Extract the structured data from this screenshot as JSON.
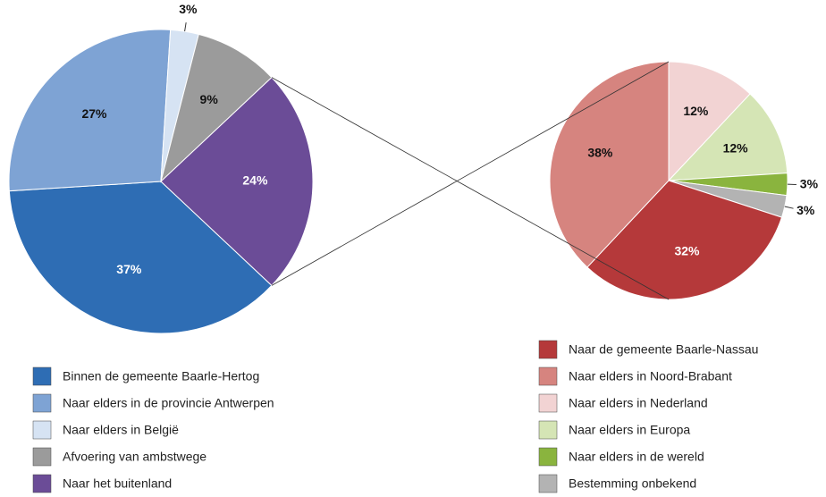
{
  "chart_data": [
    {
      "type": "pie",
      "categories": [
        "Binnen de gemeente Baarle-Hertog",
        "Naar elders in de provincie Antwerpen",
        "Naar elders in België",
        "Afvoering van ambstwege",
        "Naar het buitenland"
      ],
      "values": [
        37,
        27,
        3,
        9,
        24
      ],
      "value_labels": [
        "37%",
        "27%",
        "3%",
        "9%",
        "24%"
      ],
      "colors": [
        "#2e6db4",
        "#7ea3d4",
        "#d6e3f3",
        "#9b9b9b",
        "#6b4c97"
      ]
    },
    {
      "type": "pie",
      "categories": [
        "Naar de gemeente Baarle-Nassau",
        "Naar elders in Noord-Brabant",
        "Naar elders in Nederland",
        "Naar elders in Europa",
        "Naar elders in de wereld",
        "Bestemming onbekend"
      ],
      "values": [
        32,
        38,
        12,
        12,
        3,
        3
      ],
      "value_labels": [
        "32%",
        "38%",
        "12%",
        "12%",
        "3%",
        "3%"
      ],
      "colors": [
        "#b5393a",
        "#d6847f",
        "#f2d3d3",
        "#d5e5b5",
        "#8ab43e",
        "#b3b3b3"
      ]
    }
  ]
}
